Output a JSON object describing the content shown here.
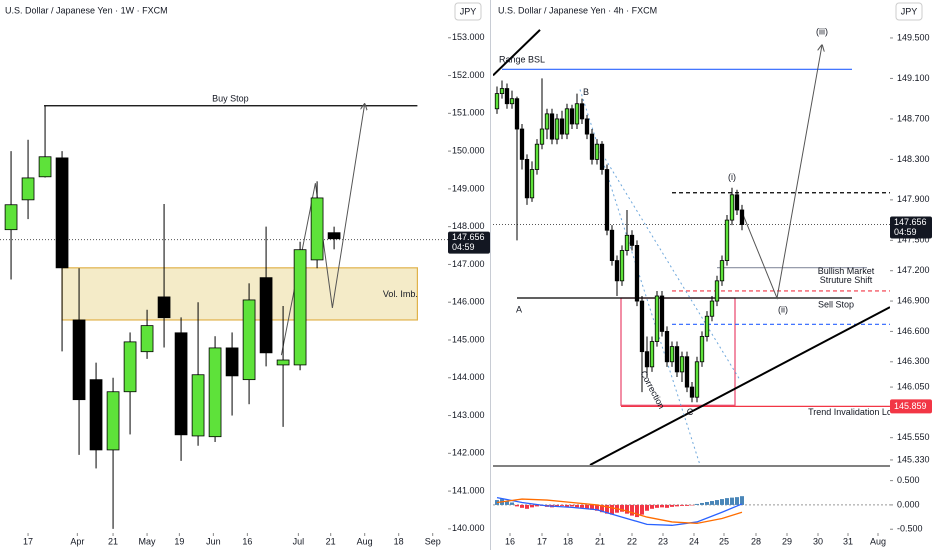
{
  "chart_data": [
    {
      "type": "candlestick",
      "title": "U.S. Dollar / Japanese Yen · 1W · FXCM",
      "currency": "JPY",
      "up_color": "#5ee23a",
      "down_color": "#000000",
      "xlim": [
        -0.65,
        25.7
      ],
      "ylim": [
        139.97,
        154.0
      ],
      "xticks": [
        {
          "value": 1.0,
          "label": "17"
        },
        {
          "value": 3.9,
          "label": "Apr"
        },
        {
          "value": 6.0,
          "label": "21"
        },
        {
          "value": 8.0,
          "label": "May"
        },
        {
          "value": 9.9,
          "label": "19"
        },
        {
          "value": 11.9,
          "label": "Jun"
        },
        {
          "value": 13.9,
          "label": "16"
        },
        {
          "value": 16.9,
          "label": "Jul"
        },
        {
          "value": 18.8,
          "label": "21"
        },
        {
          "value": 20.8,
          "label": "Aug"
        },
        {
          "value": 22.8,
          "label": "18"
        },
        {
          "value": 24.8,
          "label": "Sep"
        }
      ],
      "yticks": [
        {
          "value": 140,
          "label": "140.000"
        },
        {
          "value": 141,
          "label": "141.000"
        },
        {
          "value": 142,
          "label": "142.000"
        },
        {
          "value": 143,
          "label": "143.000"
        },
        {
          "value": 144,
          "label": "144.000"
        },
        {
          "value": 145,
          "label": "145.000"
        },
        {
          "value": 146,
          "label": "146.000"
        },
        {
          "value": 147,
          "label": "147.000"
        },
        {
          "value": 148,
          "label": "148.000"
        },
        {
          "value": 149,
          "label": "149.000"
        },
        {
          "value": 150,
          "label": "150.000"
        },
        {
          "value": 151,
          "label": "151.000"
        },
        {
          "value": 152,
          "label": "152.000"
        },
        {
          "value": 153,
          "label": "153.000"
        }
      ],
      "candles": [
        {
          "o": 147.92,
          "h": 150.0,
          "l": 146.6,
          "c": 148.58
        },
        {
          "o": 148.71,
          "h": 150.3,
          "l": 148.2,
          "c": 149.29
        },
        {
          "o": 149.32,
          "h": 151.2,
          "l": 149.3,
          "c": 149.85
        },
        {
          "o": 149.82,
          "h": 150.0,
          "l": 144.7,
          "c": 146.91
        },
        {
          "o": 145.53,
          "h": 146.9,
          "l": 141.96,
          "c": 143.42
        },
        {
          "o": 143.95,
          "h": 144.4,
          "l": 141.6,
          "c": 142.09
        },
        {
          "o": 142.09,
          "h": 144.0,
          "l": 140.0,
          "c": 143.63
        },
        {
          "o": 143.63,
          "h": 145.2,
          "l": 142.5,
          "c": 144.95
        },
        {
          "o": 144.69,
          "h": 145.8,
          "l": 144.5,
          "c": 145.38
        },
        {
          "o": 146.14,
          "h": 148.6,
          "l": 144.8,
          "c": 145.59
        },
        {
          "o": 145.19,
          "h": 145.6,
          "l": 141.8,
          "c": 142.49
        },
        {
          "o": 142.46,
          "h": 146.0,
          "l": 142.2,
          "c": 144.08
        },
        {
          "o": 142.44,
          "h": 145.1,
          "l": 142.3,
          "c": 144.79
        },
        {
          "o": 144.79,
          "h": 145.2,
          "l": 143.0,
          "c": 144.05
        },
        {
          "o": 143.95,
          "h": 146.5,
          "l": 143.3,
          "c": 146.06
        },
        {
          "o": 146.65,
          "h": 148.0,
          "l": 144.3,
          "c": 144.66
        },
        {
          "o": 144.34,
          "h": 145.9,
          "l": 142.7,
          "c": 144.47
        },
        {
          "o": 144.34,
          "h": 147.6,
          "l": 144.2,
          "c": 147.39
        },
        {
          "o": 147.12,
          "h": 149.2,
          "l": 146.9,
          "c": 148.76
        },
        {
          "o": 147.84,
          "h": 148.0,
          "l": 147.4,
          "c": 147.68
        }
      ],
      "last_price": 147.656,
      "countdown": "04:59",
      "hlines": [
        {
          "price": 151.2,
          "from": 1.94,
          "to": 23.9,
          "color": "#000000"
        }
      ],
      "boxes": [
        {
          "top": 146.91,
          "bottom": 145.53,
          "from": 3.0,
          "to": 23.9,
          "stroke": "#e0b24a",
          "fill": "#efe2b0"
        }
      ],
      "polylines": [
        {
          "x": [
            15.9,
            17.9,
            18.9,
            20.8
          ],
          "y": [
            144.6,
            149.15,
            145.85,
            151.25
          ],
          "color": "#555555",
          "arrow": true
        }
      ],
      "labels": [
        {
          "text": "Buy Stop",
          "x": 12.9,
          "price": 151.38,
          "color": "#000000"
        },
        {
          "text": "Vol. Imb.",
          "x": 22.9,
          "price": 146.2,
          "color": "#000000"
        }
      ]
    },
    {
      "type": "candlestick",
      "title": "U.S. Dollar / Japanese Yen · 4h · FXCM",
      "currency": "JPY",
      "up_color": "#5ee23a",
      "down_color": "#000000",
      "xlim": [
        -0.8,
        78.6
      ],
      "ylim": [
        145.28,
        149.875
      ],
      "xticks": [
        {
          "value": 2.6,
          "label": "16"
        },
        {
          "value": 9,
          "label": "17"
        },
        {
          "value": 14.2,
          "label": "18"
        },
        {
          "value": 20.6,
          "label": "21"
        },
        {
          "value": 27,
          "label": "22"
        },
        {
          "value": 33.2,
          "label": "23"
        },
        {
          "value": 39.4,
          "label": "24"
        },
        {
          "value": 45.4,
          "label": "25"
        },
        {
          "value": 51.8,
          "label": "28"
        },
        {
          "value": 58,
          "label": "29"
        },
        {
          "value": 64.2,
          "label": "30"
        },
        {
          "value": 70.2,
          "label": "31"
        },
        {
          "value": 76.2,
          "label": "Aug"
        }
      ],
      "yticks": [
        {
          "value": 145.33,
          "label": "145.330"
        },
        {
          "value": 145.55,
          "label": "145.550"
        },
        {
          "value": 146.05,
          "label": "146.050"
        },
        {
          "value": 146.3,
          "label": "146.300"
        },
        {
          "value": 146.6,
          "label": "146.600"
        },
        {
          "value": 146.9,
          "label": "146.900"
        },
        {
          "value": 147.2,
          "label": "147.200"
        },
        {
          "value": 147.5,
          "label": "147.500"
        },
        {
          "value": 147.9,
          "label": "147.900"
        },
        {
          "value": 148.3,
          "label": "148.300"
        },
        {
          "value": 148.7,
          "label": "148.700"
        },
        {
          "value": 149.1,
          "label": "149.100"
        },
        {
          "value": 149.5,
          "label": "149.500"
        }
      ],
      "candles": [
        {
          "o": 148.8,
          "h": 149.02,
          "l": 148.75,
          "c": 148.95
        },
        {
          "o": 148.95,
          "h": 149.08,
          "l": 148.9,
          "c": 149.0
        },
        {
          "o": 149.0,
          "h": 149.05,
          "l": 148.8,
          "c": 148.85
        },
        {
          "o": 148.85,
          "h": 148.98,
          "l": 148.8,
          "c": 148.9
        },
        {
          "o": 148.9,
          "h": 148.92,
          "l": 147.5,
          "c": 148.6
        },
        {
          "o": 148.6,
          "h": 148.65,
          "l": 148.2,
          "c": 148.3
        },
        {
          "o": 148.3,
          "h": 148.35,
          "l": 147.85,
          "c": 147.92
        },
        {
          "o": 147.92,
          "h": 148.28,
          "l": 147.88,
          "c": 148.2
        },
        {
          "o": 148.2,
          "h": 148.5,
          "l": 148.15,
          "c": 148.45
        },
        {
          "o": 148.45,
          "h": 149.1,
          "l": 148.4,
          "c": 148.6
        },
        {
          "o": 148.6,
          "h": 148.8,
          "l": 148.5,
          "c": 148.75
        },
        {
          "o": 148.75,
          "h": 148.8,
          "l": 148.45,
          "c": 148.5
        },
        {
          "o": 148.5,
          "h": 148.75,
          "l": 148.45,
          "c": 148.7
        },
        {
          "o": 148.7,
          "h": 148.78,
          "l": 148.5,
          "c": 148.55
        },
        {
          "o": 148.55,
          "h": 148.85,
          "l": 148.5,
          "c": 148.8
        },
        {
          "o": 148.8,
          "h": 148.84,
          "l": 148.6,
          "c": 148.65
        },
        {
          "o": 148.65,
          "h": 148.95,
          "l": 148.6,
          "c": 148.85
        },
        {
          "o": 148.85,
          "h": 148.9,
          "l": 148.65,
          "c": 148.7
        },
        {
          "o": 148.7,
          "h": 148.74,
          "l": 148.5,
          "c": 148.55
        },
        {
          "o": 148.55,
          "h": 148.6,
          "l": 148.25,
          "c": 148.3
        },
        {
          "o": 148.3,
          "h": 148.5,
          "l": 148.25,
          "c": 148.45
        },
        {
          "o": 148.45,
          "h": 148.48,
          "l": 148.15,
          "c": 148.2
        },
        {
          "o": 148.2,
          "h": 148.25,
          "l": 147.55,
          "c": 147.6
        },
        {
          "o": 147.6,
          "h": 147.65,
          "l": 147.25,
          "c": 147.3
        },
        {
          "o": 147.3,
          "h": 147.35,
          "l": 146.95,
          "c": 147.1
        },
        {
          "o": 147.1,
          "h": 147.45,
          "l": 147.05,
          "c": 147.4
        },
        {
          "o": 147.4,
          "h": 147.8,
          "l": 147.35,
          "c": 147.55
        },
        {
          "o": 147.55,
          "h": 147.6,
          "l": 147.4,
          "c": 147.45
        },
        {
          "o": 147.45,
          "h": 147.5,
          "l": 146.85,
          "c": 146.9
        },
        {
          "o": 146.9,
          "h": 146.95,
          "l": 146.0,
          "c": 146.4
        },
        {
          "o": 146.4,
          "h": 146.55,
          "l": 146.15,
          "c": 146.25
        },
        {
          "o": 146.25,
          "h": 146.55,
          "l": 146.2,
          "c": 146.5
        },
        {
          "o": 146.5,
          "h": 147.0,
          "l": 146.45,
          "c": 146.95
        },
        {
          "o": 146.95,
          "h": 147.0,
          "l": 146.55,
          "c": 146.6
        },
        {
          "o": 146.6,
          "h": 146.65,
          "l": 146.25,
          "c": 146.3
        },
        {
          "o": 146.3,
          "h": 146.5,
          "l": 146.25,
          "c": 146.45
        },
        {
          "o": 146.45,
          "h": 146.5,
          "l": 146.15,
          "c": 146.2
        },
        {
          "o": 146.2,
          "h": 146.4,
          "l": 146.1,
          "c": 146.35
        },
        {
          "o": 146.35,
          "h": 146.4,
          "l": 146.0,
          "c": 146.05
        },
        {
          "o": 146.05,
          "h": 146.1,
          "l": 145.9,
          "c": 145.95
        },
        {
          "o": 145.95,
          "h": 146.35,
          "l": 145.9,
          "c": 146.3
        },
        {
          "o": 146.3,
          "h": 146.6,
          "l": 146.25,
          "c": 146.55
        },
        {
          "o": 146.55,
          "h": 146.8,
          "l": 146.5,
          "c": 146.75
        },
        {
          "o": 146.75,
          "h": 146.95,
          "l": 146.7,
          "c": 146.9
        },
        {
          "o": 146.9,
          "h": 147.15,
          "l": 146.85,
          "c": 147.1
        },
        {
          "o": 147.1,
          "h": 147.35,
          "l": 147.05,
          "c": 147.3
        },
        {
          "o": 147.3,
          "h": 147.75,
          "l": 147.25,
          "c": 147.7
        },
        {
          "o": 147.7,
          "h": 148.02,
          "l": 147.65,
          "c": 147.95
        },
        {
          "o": 147.95,
          "h": 148.0,
          "l": 147.75,
          "c": 147.8
        },
        {
          "o": 147.8,
          "h": 147.85,
          "l": 147.6,
          "c": 147.656
        }
      ],
      "last_price": 147.656,
      "countdown": "04:59",
      "invalidation_price": 145.859,
      "hlines": [
        {
          "price": 149.19,
          "from": 1,
          "to": 71,
          "color": "#2962ff"
        },
        {
          "price": 146.93,
          "from": 4,
          "to": 71,
          "color": "#000000"
        },
        {
          "price": 147.97,
          "from": 35,
          "to": 78.6,
          "color": "#000000",
          "dash": true
        },
        {
          "price": 147.0,
          "from": 35,
          "to": 78.6,
          "color": "#f23645",
          "dash": true
        },
        {
          "price": 146.67,
          "from": 35,
          "to": 78.6,
          "color": "#2962ff",
          "dash": true
        },
        {
          "price": 147.23,
          "from": 44,
          "to": 74,
          "color": "#8a8fa0"
        },
        {
          "price": 145.859,
          "from": 24.8,
          "to": 78.6,
          "color": "#f23645"
        }
      ],
      "boxes": [
        {
          "top": 146.93,
          "bottom": 145.87,
          "from": 24.8,
          "to": 47.6,
          "stroke": "#e8436a",
          "fill": "none"
        }
      ],
      "polylines": [
        {
          "x": [
            -0.8,
            8.6
          ],
          "y": [
            149.13,
            149.58
          ],
          "color": "#000000",
          "width": 2
        },
        {
          "x": [
            18.6,
            78.6
          ],
          "y": [
            145.28,
            146.84
          ],
          "color": "#000000",
          "width": 2
        },
        {
          "x": [
            16.6,
            40.6
          ],
          "y": [
            148.99,
            145.28
          ],
          "color": "#6fa8dc",
          "dash": true
        },
        {
          "x": [
            20.6,
            48.6
          ],
          "y": [
            148.39,
            146.12
          ],
          "color": "#6fa8dc",
          "dash": true
        },
        {
          "x": [
            49,
            56,
            65
          ],
          "y": [
            147.78,
            146.93,
            149.43
          ],
          "color": "#555555",
          "arrow": true
        }
      ],
      "labels": [
        {
          "text": "Range BSL",
          "x": 5,
          "price": 149.28,
          "color": "#2962ff"
        },
        {
          "text": "A",
          "x": 4.4,
          "price": 146.81,
          "color": "#f23645"
        },
        {
          "text": "B",
          "x": 17.8,
          "price": 148.96,
          "color": "#f23645"
        },
        {
          "text": "C",
          "x": 38.6,
          "price": 145.8,
          "color": "#f23645"
        },
        {
          "text": "(i)",
          "x": 47,
          "price": 148.12,
          "color": "#2962ff"
        },
        {
          "text": "(ii)",
          "x": 57.2,
          "price": 146.81,
          "color": "#2962ff"
        },
        {
          "text": "(iii)",
          "x": 65,
          "price": 149.56,
          "color": "#2962ff"
        },
        {
          "text": "Bullish Market",
          "x": 69.8,
          "price": 147.19,
          "color": "#3a4a8a"
        },
        {
          "text": "Struture Shift",
          "x": 69.8,
          "price": 147.1,
          "color": "#3a4a8a"
        },
        {
          "text": "Sell Stop",
          "x": 67.8,
          "price": 146.86,
          "color": "#000000"
        },
        {
          "text": "Correction",
          "x": 31,
          "price": 146.02,
          "color": "#000000",
          "rotate": 62
        },
        {
          "text": "Trend Invalidation Long",
          "x": 71.6,
          "price": 145.8,
          "color": "#f23645"
        }
      ]
    },
    {
      "type": "macd",
      "xlim": [
        -0.8,
        78.6
      ],
      "ylim": [
        -0.66,
        0.78
      ],
      "yticks": [
        {
          "value": -0.5,
          "label": "-0.500"
        },
        {
          "value": 0,
          "label": "0.000"
        },
        {
          "value": 0.5,
          "label": "0.500"
        }
      ],
      "histogram": [
        0.1,
        0.12,
        0.08,
        0.05,
        -0.03,
        -0.06,
        -0.08,
        -0.05,
        -0.03,
        -0.02,
        -0.04,
        -0.05,
        -0.03,
        -0.02,
        -0.04,
        -0.03,
        -0.05,
        -0.06,
        -0.08,
        -0.1,
        -0.12,
        -0.15,
        -0.18,
        -0.2,
        -0.16,
        -0.14,
        -0.18,
        -0.22,
        -0.25,
        -0.2,
        -0.12,
        -0.08,
        -0.06,
        -0.05,
        -0.06,
        -0.04,
        -0.03,
        -0.02,
        -0.02,
        -0.01,
        0.02,
        0.04,
        0.06,
        0.08,
        0.1,
        0.12,
        0.14,
        0.15,
        0.16,
        0.18
      ],
      "up_color": "#4a86b8",
      "down_color": "#f23645",
      "x": [
        0,
        5,
        10,
        15,
        20,
        25,
        30,
        35,
        40,
        45,
        49
      ],
      "series": [
        {
          "color": "#2962ff",
          "values": [
            0.15,
            0.05,
            -0.02,
            -0.05,
            -0.1,
            -0.25,
            -0.4,
            -0.42,
            -0.35,
            -0.15,
            0.02
          ]
        },
        {
          "color": "#ff6d00",
          "values": [
            0.05,
            0.12,
            0.1,
            0.05,
            0.0,
            -0.1,
            -0.25,
            -0.35,
            -0.38,
            -0.28,
            -0.15
          ]
        }
      ]
    }
  ]
}
